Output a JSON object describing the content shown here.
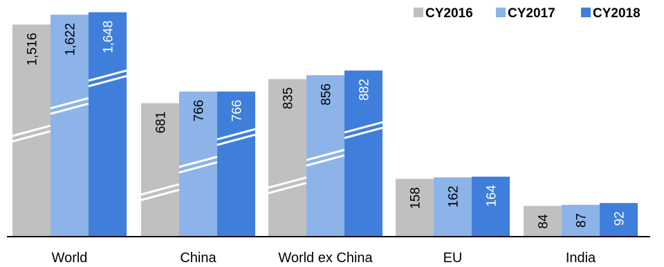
{
  "chart_data": {
    "type": "bar",
    "categories": [
      "World",
      "China",
      "World ex China",
      "EU",
      "India"
    ],
    "series": [
      {
        "name": "CY2016",
        "values": [
          1516,
          681,
          835,
          158,
          84
        ],
        "labels": [
          "1,516",
          "681",
          "835",
          "158",
          "84"
        ],
        "color": "#c0c0c0",
        "label_color": "#000000"
      },
      {
        "name": "CY2017",
        "values": [
          1622,
          766,
          856,
          162,
          87
        ],
        "labels": [
          "1,622",
          "766",
          "856",
          "162",
          "87"
        ],
        "color": "#8db4e8",
        "label_color": "#000000"
      },
      {
        "name": "CY2018",
        "values": [
          1648,
          766,
          882,
          164,
          92
        ],
        "labels": [
          "1,648",
          "766",
          "882",
          "164",
          "92"
        ],
        "color": "#3f7fdb",
        "label_color": "#ffffff"
      }
    ],
    "title": "",
    "xlabel": "",
    "ylabel": "",
    "axis_break": true,
    "grid": false,
    "legend_position": "top-right",
    "data_label_orientation": "vertical"
  }
}
